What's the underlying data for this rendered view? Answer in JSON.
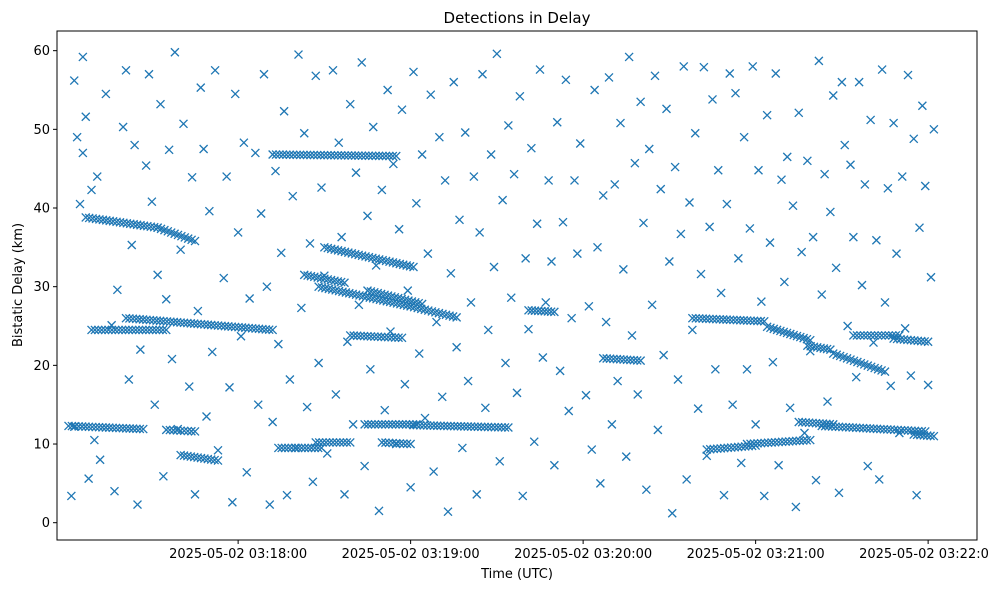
{
  "chart_data": {
    "type": "scatter",
    "title": "Detections in Delay",
    "xlabel": "Time (UTC)",
    "ylabel": "Bistatic Delay (km)",
    "x_unit": "seconds after 2025-05-02 03:16:55 UTC",
    "xlim": [
      0,
      320
    ],
    "ylim": [
      -2.2,
      62.5
    ],
    "x_ticks": [
      {
        "t": 63,
        "label": "2025-05-02 03:18:00"
      },
      {
        "t": 123,
        "label": "2025-05-02 03:19:00"
      },
      {
        "t": 183,
        "label": "2025-05-02 03:20:00"
      },
      {
        "t": 243,
        "label": "2025-05-02 03:21:00"
      },
      {
        "t": 303,
        "label": "2025-05-02 03:22:00"
      }
    ],
    "y_ticks": [
      0,
      10,
      20,
      30,
      40,
      50,
      60
    ],
    "marker": "x",
    "color": "#1f77b4",
    "grid": false,
    "noise_points": [
      [
        5,
        3.4
      ],
      [
        6,
        56.2
      ],
      [
        6,
        12.2
      ],
      [
        7,
        49.0
      ],
      [
        8,
        40.5
      ],
      [
        9,
        47.0
      ],
      [
        9,
        59.2
      ],
      [
        10,
        51.6
      ],
      [
        11,
        5.6
      ],
      [
        12,
        42.3
      ],
      [
        13,
        10.5
      ],
      [
        14,
        44.0
      ],
      [
        15,
        8.0
      ],
      [
        17,
        54.5
      ],
      [
        19,
        25.1
      ],
      [
        20,
        4.0
      ],
      [
        21,
        29.6
      ],
      [
        23,
        50.3
      ],
      [
        24,
        57.5
      ],
      [
        25,
        18.2
      ],
      [
        26,
        35.3
      ],
      [
        27,
        48.0
      ],
      [
        28,
        2.3
      ],
      [
        29,
        22.0
      ],
      [
        31,
        45.4
      ],
      [
        32,
        57.0
      ],
      [
        33,
        40.8
      ],
      [
        34,
        15.0
      ],
      [
        35,
        31.5
      ],
      [
        36,
        53.2
      ],
      [
        37,
        5.9
      ],
      [
        38,
        28.4
      ],
      [
        39,
        47.4
      ],
      [
        40,
        20.8
      ],
      [
        41,
        59.8
      ],
      [
        42,
        11.9
      ],
      [
        43,
        34.7
      ],
      [
        44,
        50.7
      ],
      [
        46,
        17.3
      ],
      [
        47,
        43.9
      ],
      [
        48,
        3.6
      ],
      [
        49,
        26.9
      ],
      [
        50,
        55.3
      ],
      [
        51,
        47.5
      ],
      [
        52,
        13.5
      ],
      [
        53,
        39.6
      ],
      [
        54,
        21.7
      ],
      [
        55,
        57.5
      ],
      [
        56,
        9.2
      ],
      [
        58,
        31.1
      ],
      [
        59,
        44.0
      ],
      [
        60,
        17.2
      ],
      [
        61,
        2.6
      ],
      [
        62,
        54.5
      ],
      [
        63,
        36.9
      ],
      [
        64,
        23.7
      ],
      [
        65,
        48.3
      ],
      [
        66,
        6.4
      ],
      [
        67,
        28.5
      ],
      [
        69,
        47.0
      ],
      [
        70,
        15.0
      ],
      [
        71,
        39.3
      ],
      [
        72,
        57.0
      ],
      [
        73,
        30.0
      ],
      [
        74,
        2.3
      ],
      [
        75,
        12.8
      ],
      [
        76,
        44.7
      ],
      [
        77,
        22.7
      ],
      [
        78,
        34.3
      ],
      [
        79,
        52.3
      ],
      [
        80,
        3.5
      ],
      [
        81,
        18.2
      ],
      [
        82,
        41.5
      ],
      [
        83,
        9.5
      ],
      [
        84,
        59.5
      ],
      [
        85,
        27.3
      ],
      [
        86,
        49.5
      ],
      [
        87,
        14.7
      ],
      [
        88,
        35.5
      ],
      [
        89,
        5.2
      ],
      [
        90,
        56.8
      ],
      [
        91,
        20.3
      ],
      [
        92,
        42.6
      ],
      [
        93,
        31.4
      ],
      [
        94,
        8.8
      ],
      [
        96,
        57.5
      ],
      [
        97,
        16.3
      ],
      [
        98,
        48.3
      ],
      [
        99,
        36.3
      ],
      [
        100,
        3.6
      ],
      [
        101,
        23.0
      ],
      [
        102,
        53.2
      ],
      [
        103,
        12.5
      ],
      [
        104,
        44.5
      ],
      [
        105,
        27.7
      ],
      [
        106,
        58.5
      ],
      [
        107,
        7.2
      ],
      [
        108,
        39.0
      ],
      [
        109,
        19.5
      ],
      [
        110,
        50.3
      ],
      [
        111,
        32.7
      ],
      [
        112,
        1.5
      ],
      [
        113,
        42.3
      ],
      [
        114,
        14.3
      ],
      [
        115,
        55.0
      ],
      [
        116,
        24.3
      ],
      [
        117,
        45.6
      ],
      [
        118,
        10.0
      ],
      [
        119,
        37.3
      ],
      [
        120,
        52.5
      ],
      [
        121,
        17.6
      ],
      [
        122,
        29.5
      ],
      [
        123,
        4.5
      ],
      [
        124,
        57.3
      ],
      [
        125,
        40.6
      ],
      [
        126,
        21.5
      ],
      [
        127,
        46.8
      ],
      [
        128,
        13.3
      ],
      [
        129,
        34.2
      ],
      [
        130,
        54.4
      ],
      [
        131,
        6.5
      ],
      [
        132,
        25.5
      ],
      [
        133,
        49.0
      ],
      [
        134,
        16.0
      ],
      [
        135,
        43.5
      ],
      [
        136,
        1.4
      ],
      [
        137,
        31.7
      ],
      [
        138,
        56.0
      ],
      [
        139,
        22.3
      ],
      [
        140,
        38.5
      ],
      [
        141,
        9.5
      ],
      [
        142,
        49.6
      ],
      [
        143,
        18.0
      ],
      [
        144,
        28.0
      ],
      [
        145,
        44.0
      ],
      [
        146,
        3.6
      ],
      [
        147,
        36.9
      ],
      [
        148,
        57.0
      ],
      [
        149,
        14.6
      ],
      [
        150,
        24.5
      ],
      [
        151,
        46.8
      ],
      [
        152,
        32.5
      ],
      [
        153,
        59.6
      ],
      [
        154,
        7.8
      ],
      [
        155,
        41.0
      ],
      [
        156,
        20.3
      ],
      [
        157,
        50.5
      ],
      [
        158,
        28.6
      ],
      [
        159,
        44.3
      ],
      [
        160,
        16.5
      ],
      [
        161,
        54.2
      ],
      [
        162,
        3.4
      ],
      [
        163,
        33.6
      ],
      [
        164,
        24.6
      ],
      [
        165,
        47.6
      ],
      [
        166,
        10.3
      ],
      [
        167,
        38.0
      ],
      [
        168,
        57.6
      ],
      [
        169,
        21.0
      ],
      [
        170,
        28.0
      ],
      [
        171,
        43.5
      ],
      [
        172,
        33.2
      ],
      [
        173,
        7.3
      ],
      [
        174,
        50.9
      ],
      [
        175,
        19.3
      ],
      [
        176,
        38.2
      ],
      [
        177,
        56.3
      ],
      [
        178,
        14.2
      ],
      [
        179,
        26.0
      ],
      [
        180,
        43.5
      ],
      [
        181,
        34.2
      ],
      [
        182,
        48.2
      ],
      [
        184,
        16.2
      ],
      [
        185,
        27.5
      ],
      [
        186,
        9.3
      ],
      [
        187,
        55.0
      ],
      [
        188,
        35.0
      ],
      [
        189,
        5.0
      ],
      [
        190,
        41.6
      ],
      [
        191,
        25.5
      ],
      [
        192,
        56.6
      ],
      [
        193,
        12.5
      ],
      [
        194,
        43.0
      ],
      [
        195,
        18.0
      ],
      [
        196,
        50.8
      ],
      [
        197,
        32.2
      ],
      [
        198,
        8.4
      ],
      [
        199,
        59.2
      ],
      [
        200,
        23.8
      ],
      [
        201,
        45.7
      ],
      [
        202,
        16.3
      ],
      [
        203,
        53.5
      ],
      [
        204,
        38.1
      ],
      [
        205,
        4.2
      ],
      [
        206,
        47.5
      ],
      [
        207,
        27.7
      ],
      [
        208,
        56.8
      ],
      [
        209,
        11.8
      ],
      [
        210,
        42.4
      ],
      [
        211,
        21.3
      ],
      [
        212,
        52.6
      ],
      [
        213,
        33.2
      ],
      [
        214,
        1.2
      ],
      [
        215,
        45.2
      ],
      [
        216,
        18.2
      ],
      [
        217,
        36.7
      ],
      [
        218,
        58.0
      ],
      [
        219,
        5.5
      ],
      [
        220,
        40.7
      ],
      [
        221,
        24.5
      ],
      [
        222,
        49.5
      ],
      [
        223,
        14.5
      ],
      [
        224,
        31.6
      ],
      [
        225,
        57.9
      ],
      [
        226,
        8.5
      ],
      [
        227,
        37.6
      ],
      [
        228,
        53.8
      ],
      [
        229,
        19.5
      ],
      [
        230,
        44.8
      ],
      [
        231,
        29.2
      ],
      [
        232,
        3.5
      ],
      [
        233,
        40.5
      ],
      [
        234,
        57.1
      ],
      [
        235,
        15.0
      ],
      [
        236,
        54.6
      ],
      [
        237,
        33.6
      ],
      [
        238,
        7.6
      ],
      [
        239,
        49.0
      ],
      [
        240,
        19.5
      ],
      [
        241,
        37.4
      ],
      [
        242,
        58.0
      ],
      [
        243,
        12.5
      ],
      [
        244,
        44.8
      ],
      [
        245,
        28.1
      ],
      [
        246,
        3.4
      ],
      [
        247,
        51.8
      ],
      [
        248,
        35.6
      ],
      [
        249,
        20.4
      ],
      [
        250,
        57.1
      ],
      [
        251,
        7.3
      ],
      [
        252,
        43.6
      ],
      [
        253,
        30.6
      ],
      [
        254,
        46.5
      ],
      [
        255,
        14.6
      ],
      [
        256,
        40.3
      ],
      [
        257,
        2.0
      ],
      [
        258,
        52.1
      ],
      [
        259,
        34.4
      ],
      [
        260,
        11.4
      ],
      [
        261,
        46.0
      ],
      [
        262,
        21.8
      ],
      [
        263,
        36.3
      ],
      [
        264,
        5.4
      ],
      [
        265,
        58.7
      ],
      [
        266,
        29.0
      ],
      [
        267,
        44.3
      ],
      [
        268,
        15.4
      ],
      [
        269,
        39.5
      ],
      [
        270,
        54.3
      ],
      [
        271,
        32.4
      ],
      [
        272,
        3.8
      ],
      [
        273,
        56.0
      ],
      [
        274,
        48.0
      ],
      [
        275,
        25.0
      ],
      [
        276,
        45.5
      ],
      [
        277,
        36.3
      ],
      [
        278,
        18.5
      ],
      [
        279,
        56.0
      ],
      [
        280,
        30.2
      ],
      [
        281,
        43.0
      ],
      [
        282,
        7.2
      ],
      [
        283,
        51.2
      ],
      [
        284,
        22.9
      ],
      [
        285,
        35.9
      ],
      [
        286,
        5.5
      ],
      [
        287,
        57.6
      ],
      [
        288,
        28.0
      ],
      [
        289,
        42.5
      ],
      [
        290,
        17.4
      ],
      [
        291,
        50.8
      ],
      [
        292,
        34.2
      ],
      [
        293,
        11.4
      ],
      [
        294,
        44.0
      ],
      [
        295,
        24.7
      ],
      [
        296,
        56.9
      ],
      [
        297,
        18.7
      ],
      [
        298,
        48.8
      ],
      [
        299,
        3.5
      ],
      [
        300,
        37.5
      ],
      [
        301,
        53.0
      ],
      [
        302,
        42.8
      ],
      [
        303,
        17.5
      ],
      [
        304,
        31.2
      ],
      [
        305,
        50.0
      ]
    ],
    "tracks": [
      {
        "t0": 10,
        "t1": 35,
        "y0": 38.8,
        "y1": 37.5
      },
      {
        "t0": 35,
        "t1": 48,
        "y0": 37.5,
        "y1": 35.8
      },
      {
        "t0": 12,
        "t1": 38,
        "y0": 24.5,
        "y1": 24.5
      },
      {
        "t0": 24,
        "t1": 75,
        "y0": 26.0,
        "y1": 24.5
      },
      {
        "t0": 4,
        "t1": 30,
        "y0": 12.3,
        "y1": 11.9
      },
      {
        "t0": 38,
        "t1": 48,
        "y0": 11.8,
        "y1": 11.6
      },
      {
        "t0": 43,
        "t1": 56,
        "y0": 8.6,
        "y1": 7.9
      },
      {
        "t0": 75,
        "t1": 118,
        "y0": 46.8,
        "y1": 46.6
      },
      {
        "t0": 86,
        "t1": 100,
        "y0": 31.5,
        "y1": 30.5
      },
      {
        "t0": 93,
        "t1": 124,
        "y0": 35.0,
        "y1": 32.5
      },
      {
        "t0": 91,
        "t1": 123,
        "y0": 30.0,
        "y1": 27.5
      },
      {
        "t0": 108,
        "t1": 127,
        "y0": 29.5,
        "y1": 27.8
      },
      {
        "t0": 123,
        "t1": 139,
        "y0": 27.5,
        "y1": 26.1
      },
      {
        "t0": 102,
        "t1": 120,
        "y0": 23.8,
        "y1": 23.5
      },
      {
        "t0": 77,
        "t1": 92,
        "y0": 9.5,
        "y1": 9.5
      },
      {
        "t0": 90,
        "t1": 102,
        "y0": 10.2,
        "y1": 10.2
      },
      {
        "t0": 107,
        "t1": 125,
        "y0": 12.5,
        "y1": 12.5
      },
      {
        "t0": 113,
        "t1": 123,
        "y0": 10.2,
        "y1": 10.0
      },
      {
        "t0": 124,
        "t1": 157,
        "y0": 12.4,
        "y1": 12.1
      },
      {
        "t0": 164,
        "t1": 173,
        "y0": 27.0,
        "y1": 26.8
      },
      {
        "t0": 190,
        "t1": 203,
        "y0": 20.9,
        "y1": 20.6
      },
      {
        "t0": 221,
        "t1": 246,
        "y0": 26.0,
        "y1": 25.6
      },
      {
        "t0": 247,
        "t1": 262,
        "y0": 24.9,
        "y1": 23.2
      },
      {
        "t0": 261,
        "t1": 269,
        "y0": 22.5,
        "y1": 22.0
      },
      {
        "t0": 270,
        "t1": 288,
        "y0": 21.5,
        "y1": 19.2
      },
      {
        "t0": 277,
        "t1": 293,
        "y0": 23.8,
        "y1": 23.8
      },
      {
        "t0": 291,
        "t1": 303,
        "y0": 23.4,
        "y1": 23.0
      },
      {
        "t0": 226,
        "t1": 243,
        "y0": 9.3,
        "y1": 9.8
      },
      {
        "t0": 240,
        "t1": 262,
        "y0": 10.0,
        "y1": 10.5
      },
      {
        "t0": 258,
        "t1": 270,
        "y0": 12.8,
        "y1": 12.5
      },
      {
        "t0": 266,
        "t1": 302,
        "y0": 12.3,
        "y1": 11.6
      },
      {
        "t0": 298,
        "t1": 305,
        "y0": 11.2,
        "y1": 11.0
      }
    ]
  }
}
